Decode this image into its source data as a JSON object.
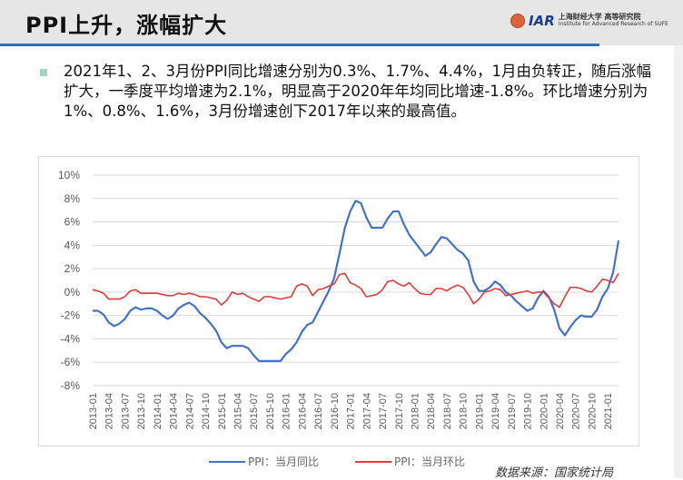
{
  "header": {
    "title": "PPI上升，涨幅扩大",
    "logo_abbr": "IAR",
    "logo_cn": "上海财经大学 高等研究院",
    "logo_en": "Institute for Advanced Research of SUFE"
  },
  "body": {
    "text": "2021年1、2、3月份PPI同比增速分别为0.3%、1.7%、4.4%，1月由负转正，随后涨幅扩大，一季度平均增速为2.1%，明显高于2020年年均同比增速-1.8%。环比增速分别为1%、0.8%、1.6%，3月份增速创下2017年以来的最高值。"
  },
  "source": "数据来源：国家统计局",
  "colors": {
    "yoy": "#4472c4",
    "mom": "#e03c3c",
    "header_line": "#2e6fb8"
  },
  "chart_data": {
    "type": "line",
    "title": "",
    "xlabel": "",
    "ylabel": "",
    "ylim": [
      -8,
      10
    ],
    "yticks": [
      "10%",
      "8%",
      "6%",
      "4%",
      "2%",
      "0%",
      "-2%",
      "-4%",
      "-6%",
      "-8%"
    ],
    "ytick_values": [
      10,
      8,
      6,
      4,
      2,
      0,
      -2,
      -4,
      -6,
      -8
    ],
    "xtick_labels": [
      "2013-01",
      "2013-04",
      "2013-07",
      "2013-10",
      "2014-01",
      "2014-04",
      "2014-07",
      "2014-10",
      "2015-01",
      "2015-04",
      "2015-07",
      "2015-10",
      "2016-01",
      "2016-04",
      "2016-07",
      "2016-10",
      "2017-01",
      "2017-04",
      "2017-07",
      "2017-10",
      "2018-01",
      "2018-04",
      "2018-07",
      "2018-10",
      "2019-01",
      "2019-04",
      "2019-07",
      "2019-10",
      "2020-01",
      "2020-04",
      "2020-07",
      "2020-10",
      "2021-01"
    ],
    "x_start": "2013-01",
    "x_end": "2021-03",
    "grid": true,
    "legend": "bottom",
    "series": [
      {
        "name": "PPI：当月同比",
        "values": [
          -1.6,
          -1.6,
          -1.9,
          -2.6,
          -2.9,
          -2.7,
          -2.3,
          -1.6,
          -1.3,
          -1.5,
          -1.4,
          -1.4,
          -1.6,
          -2.0,
          -2.3,
          -2.0,
          -1.4,
          -1.1,
          -0.9,
          -1.2,
          -1.8,
          -2.2,
          -2.7,
          -3.3,
          -4.3,
          -4.8,
          -4.6,
          -4.6,
          -4.6,
          -4.8,
          -5.4,
          -5.9,
          -5.9,
          -5.9,
          -5.9,
          -5.9,
          -5.3,
          -4.9,
          -4.3,
          -3.4,
          -2.8,
          -2.6,
          -1.7,
          -0.8,
          0.1,
          1.2,
          3.3,
          5.5,
          6.9,
          7.8,
          7.6,
          6.4,
          5.5,
          5.5,
          5.5,
          6.3,
          6.9,
          6.9,
          5.8,
          4.9,
          4.3,
          3.7,
          3.1,
          3.4,
          4.1,
          4.7,
          4.6,
          4.1,
          3.6,
          3.3,
          2.7,
          0.9,
          0.1,
          0.1,
          0.4,
          0.9,
          0.6,
          0.0,
          -0.3,
          -0.8,
          -1.2,
          -1.6,
          -1.4,
          -0.5,
          0.1,
          -0.4,
          -1.5,
          -3.1,
          -3.7,
          -3.0,
          -2.4,
          -2.0,
          -2.1,
          -2.1,
          -1.5,
          -0.4,
          0.3,
          1.7,
          4.4
        ]
      },
      {
        "name": "PPI：当月环比",
        "values": [
          0.2,
          0.1,
          -0.1,
          -0.6,
          -0.6,
          -0.6,
          -0.4,
          0.1,
          0.2,
          -0.1,
          -0.1,
          -0.1,
          -0.1,
          -0.2,
          -0.3,
          -0.3,
          -0.1,
          -0.2,
          -0.1,
          -0.2,
          -0.4,
          -0.4,
          -0.5,
          -0.6,
          -1.1,
          -0.7,
          0.0,
          -0.2,
          -0.1,
          -0.4,
          -0.6,
          -0.8,
          -0.4,
          -0.4,
          -0.5,
          -0.6,
          -0.5,
          -0.4,
          0.5,
          0.7,
          0.5,
          -0.3,
          0.2,
          0.3,
          0.5,
          0.7,
          1.5,
          1.6,
          0.8,
          0.6,
          0.3,
          -0.4,
          -0.3,
          -0.2,
          0.2,
          0.9,
          1.0,
          0.7,
          0.5,
          0.8,
          0.3,
          -0.1,
          -0.2,
          -0.2,
          0.3,
          0.3,
          0.1,
          0.4,
          0.6,
          0.4,
          -0.2,
          -1.0,
          -0.6,
          0.0,
          0.1,
          0.3,
          0.2,
          -0.3,
          -0.2,
          -0.1,
          0.0,
          0.1,
          -0.1,
          0.0,
          0.0,
          -0.5,
          -1.0,
          -1.3,
          -0.4,
          0.4,
          0.4,
          0.3,
          0.1,
          0.0,
          0.5,
          1.1,
          1.0,
          0.8,
          1.6
        ]
      }
    ]
  }
}
